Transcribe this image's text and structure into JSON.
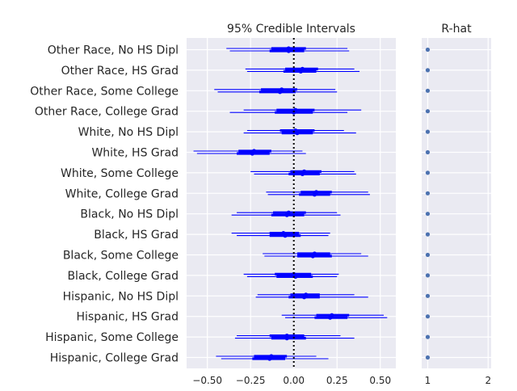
{
  "chart_data": [
    {
      "type": "forest",
      "title": "95% Credible Intervals",
      "xlim": [
        -0.62,
        0.59
      ],
      "xticks": [
        -0.5,
        -0.25,
        0.0,
        0.25,
        0.5
      ],
      "xtick_labels": [
        "−0.50",
        "−0.25",
        "0.00",
        "0.25",
        "0.50"
      ],
      "reference_line": 0.0,
      "grid": true,
      "colors": {
        "interval": "#0000ff",
        "background": "#eaeaf2",
        "grid": "#ffffff",
        "reference": "#000000"
      },
      "categories": [
        "Other Race, No HS Dipl",
        "Other Race, HS Grad",
        "Other Race, Some College",
        "Other Race, College Grad",
        "White, No HS Dipl",
        "White, HS Grad",
        "White, Some College",
        "White, College Grad",
        "Black, No HS Dipl",
        "Black, HS Grad",
        "Black, Some College",
        "Black, College Grad",
        "Hispanic, No HS Dipl",
        "Hispanic, HS Grad",
        "Hispanic, Some College",
        "Hispanic, College Grad"
      ],
      "chains": [
        [
          {
            "median": -0.03,
            "iqr": [
              -0.13,
              0.07
            ],
            "ci95": [
              -0.39,
              0.31
            ]
          },
          {
            "median": -0.03,
            "iqr": [
              -0.14,
              0.06
            ],
            "ci95": [
              -0.37,
              0.32
            ]
          }
        ],
        [
          {
            "median": 0.05,
            "iqr": [
              -0.05,
              0.14
            ],
            "ci95": [
              -0.28,
              0.35
            ]
          },
          {
            "median": 0.04,
            "iqr": [
              -0.06,
              0.13
            ],
            "ci95": [
              -0.27,
              0.38
            ]
          }
        ],
        [
          {
            "median": -0.07,
            "iqr": [
              -0.19,
              0.02
            ],
            "ci95": [
              -0.46,
              0.24
            ]
          },
          {
            "median": -0.08,
            "iqr": [
              -0.2,
              0.01
            ],
            "ci95": [
              -0.44,
              0.25
            ]
          }
        ],
        [
          {
            "median": 0.01,
            "iqr": [
              -0.1,
              0.12
            ],
            "ci95": [
              -0.29,
              0.39
            ]
          },
          {
            "median": 0.0,
            "iqr": [
              -0.11,
              0.11
            ],
            "ci95": [
              -0.37,
              0.31
            ]
          }
        ],
        [
          {
            "median": 0.01,
            "iqr": [
              -0.08,
              0.12
            ],
            "ci95": [
              -0.27,
              0.29
            ]
          },
          {
            "median": 0.02,
            "iqr": [
              -0.07,
              0.11
            ],
            "ci95": [
              -0.29,
              0.36
            ]
          }
        ],
        [
          {
            "median": -0.23,
            "iqr": [
              -0.32,
              -0.13
            ],
            "ci95": [
              -0.58,
              0.05
            ]
          },
          {
            "median": -0.24,
            "iqr": [
              -0.33,
              -0.14
            ],
            "ci95": [
              -0.56,
              0.07
            ]
          }
        ],
        [
          {
            "median": 0.06,
            "iqr": [
              -0.02,
              0.16
            ],
            "ci95": [
              -0.25,
              0.35
            ]
          },
          {
            "median": 0.05,
            "iqr": [
              -0.03,
              0.15
            ],
            "ci95": [
              -0.23,
              0.36
            ]
          }
        ],
        [
          {
            "median": 0.13,
            "iqr": [
              0.04,
              0.22
            ],
            "ci95": [
              -0.16,
              0.43
            ]
          },
          {
            "median": 0.12,
            "iqr": [
              0.03,
              0.21
            ],
            "ci95": [
              -0.15,
              0.44
            ]
          }
        ],
        [
          {
            "median": -0.03,
            "iqr": [
              -0.12,
              0.07
            ],
            "ci95": [
              -0.33,
              0.25
            ]
          },
          {
            "median": -0.04,
            "iqr": [
              -0.13,
              0.06
            ],
            "ci95": [
              -0.36,
              0.27
            ]
          }
        ],
        [
          {
            "median": -0.06,
            "iqr": [
              -0.14,
              0.03
            ],
            "ci95": [
              -0.36,
              0.21
            ]
          },
          {
            "median": -0.05,
            "iqr": [
              -0.14,
              0.04
            ],
            "ci95": [
              -0.33,
              0.2
            ]
          }
        ],
        [
          {
            "median": 0.12,
            "iqr": [
              0.02,
              0.21
            ],
            "ci95": [
              -0.18,
              0.39
            ]
          },
          {
            "median": 0.11,
            "iqr": [
              0.02,
              0.22
            ],
            "ci95": [
              -0.17,
              0.43
            ]
          }
        ],
        [
          {
            "median": 0.0,
            "iqr": [
              -0.11,
              0.1
            ],
            "ci95": [
              -0.29,
              0.26
            ]
          },
          {
            "median": 0.01,
            "iqr": [
              -0.1,
              0.11
            ],
            "ci95": [
              -0.27,
              0.25
            ]
          }
        ],
        [
          {
            "median": 0.07,
            "iqr": [
              -0.02,
              0.15
            ],
            "ci95": [
              -0.21,
              0.35
            ]
          },
          {
            "median": 0.06,
            "iqr": [
              -0.03,
              0.15
            ],
            "ci95": [
              -0.22,
              0.43
            ]
          }
        ],
        [
          {
            "median": 0.22,
            "iqr": [
              0.13,
              0.32
            ],
            "ci95": [
              -0.07,
              0.52
            ]
          },
          {
            "median": 0.21,
            "iqr": [
              0.12,
              0.31
            ],
            "ci95": [
              -0.05,
              0.54
            ]
          }
        ],
        [
          {
            "median": -0.04,
            "iqr": [
              -0.14,
              0.06
            ],
            "ci95": [
              -0.33,
              0.27
            ]
          },
          {
            "median": -0.04,
            "iqr": [
              -0.13,
              0.07
            ],
            "ci95": [
              -0.34,
              0.35
            ]
          }
        ],
        [
          {
            "median": -0.13,
            "iqr": [
              -0.23,
              -0.04
            ],
            "ci95": [
              -0.45,
              0.13
            ]
          },
          {
            "median": -0.14,
            "iqr": [
              -0.24,
              -0.05
            ],
            "ci95": [
              -0.42,
              0.2
            ]
          }
        ]
      ]
    },
    {
      "type": "scatter",
      "title": "R-hat",
      "xlim": [
        0.9,
        2.05
      ],
      "xticks": [
        1,
        2
      ],
      "xtick_labels": [
        "1",
        "2"
      ],
      "grid": true,
      "colors": {
        "point": "#4c72b0",
        "background": "#eaeaf2",
        "grid": "#ffffff"
      },
      "values": [
        1.0,
        1.0,
        1.0,
        1.0,
        1.0,
        1.0,
        1.0,
        1.0,
        1.0,
        1.0,
        1.0,
        1.0,
        1.0,
        1.0,
        1.0,
        1.0
      ]
    }
  ]
}
